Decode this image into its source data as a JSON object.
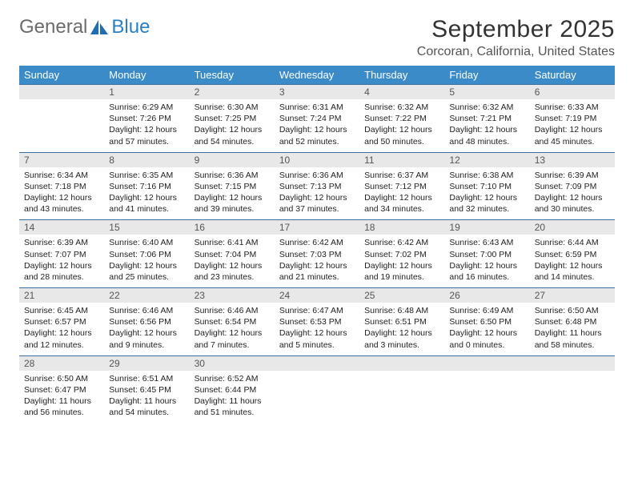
{
  "brand": {
    "word1": "General",
    "word2": "Blue"
  },
  "title": "September 2025",
  "location": "Corcoran, California, United States",
  "colors": {
    "header_bg": "#3b8bc9",
    "header_text": "#ffffff",
    "daynum_bg": "#e8e8e8",
    "daynum_text": "#555555",
    "rule": "#3b6fa0",
    "brand_gray": "#6b6b6b",
    "brand_blue": "#2b7fc3",
    "body_text": "#222222"
  },
  "fonts": {
    "title_size": 30,
    "location_size": 16,
    "dayhead_size": 13,
    "daynum_size": 12,
    "cell_size": 10.5
  },
  "day_headers": [
    "Sunday",
    "Monday",
    "Tuesday",
    "Wednesday",
    "Thursday",
    "Friday",
    "Saturday"
  ],
  "weeks": [
    [
      null,
      {
        "n": "1",
        "sr": "Sunrise: 6:29 AM",
        "ss": "Sunset: 7:26 PM",
        "d1": "Daylight: 12 hours",
        "d2": "and 57 minutes."
      },
      {
        "n": "2",
        "sr": "Sunrise: 6:30 AM",
        "ss": "Sunset: 7:25 PM",
        "d1": "Daylight: 12 hours",
        "d2": "and 54 minutes."
      },
      {
        "n": "3",
        "sr": "Sunrise: 6:31 AM",
        "ss": "Sunset: 7:24 PM",
        "d1": "Daylight: 12 hours",
        "d2": "and 52 minutes."
      },
      {
        "n": "4",
        "sr": "Sunrise: 6:32 AM",
        "ss": "Sunset: 7:22 PM",
        "d1": "Daylight: 12 hours",
        "d2": "and 50 minutes."
      },
      {
        "n": "5",
        "sr": "Sunrise: 6:32 AM",
        "ss": "Sunset: 7:21 PM",
        "d1": "Daylight: 12 hours",
        "d2": "and 48 minutes."
      },
      {
        "n": "6",
        "sr": "Sunrise: 6:33 AM",
        "ss": "Sunset: 7:19 PM",
        "d1": "Daylight: 12 hours",
        "d2": "and 45 minutes."
      }
    ],
    [
      {
        "n": "7",
        "sr": "Sunrise: 6:34 AM",
        "ss": "Sunset: 7:18 PM",
        "d1": "Daylight: 12 hours",
        "d2": "and 43 minutes."
      },
      {
        "n": "8",
        "sr": "Sunrise: 6:35 AM",
        "ss": "Sunset: 7:16 PM",
        "d1": "Daylight: 12 hours",
        "d2": "and 41 minutes."
      },
      {
        "n": "9",
        "sr": "Sunrise: 6:36 AM",
        "ss": "Sunset: 7:15 PM",
        "d1": "Daylight: 12 hours",
        "d2": "and 39 minutes."
      },
      {
        "n": "10",
        "sr": "Sunrise: 6:36 AM",
        "ss": "Sunset: 7:13 PM",
        "d1": "Daylight: 12 hours",
        "d2": "and 37 minutes."
      },
      {
        "n": "11",
        "sr": "Sunrise: 6:37 AM",
        "ss": "Sunset: 7:12 PM",
        "d1": "Daylight: 12 hours",
        "d2": "and 34 minutes."
      },
      {
        "n": "12",
        "sr": "Sunrise: 6:38 AM",
        "ss": "Sunset: 7:10 PM",
        "d1": "Daylight: 12 hours",
        "d2": "and 32 minutes."
      },
      {
        "n": "13",
        "sr": "Sunrise: 6:39 AM",
        "ss": "Sunset: 7:09 PM",
        "d1": "Daylight: 12 hours",
        "d2": "and 30 minutes."
      }
    ],
    [
      {
        "n": "14",
        "sr": "Sunrise: 6:39 AM",
        "ss": "Sunset: 7:07 PM",
        "d1": "Daylight: 12 hours",
        "d2": "and 28 minutes."
      },
      {
        "n": "15",
        "sr": "Sunrise: 6:40 AM",
        "ss": "Sunset: 7:06 PM",
        "d1": "Daylight: 12 hours",
        "d2": "and 25 minutes."
      },
      {
        "n": "16",
        "sr": "Sunrise: 6:41 AM",
        "ss": "Sunset: 7:04 PM",
        "d1": "Daylight: 12 hours",
        "d2": "and 23 minutes."
      },
      {
        "n": "17",
        "sr": "Sunrise: 6:42 AM",
        "ss": "Sunset: 7:03 PM",
        "d1": "Daylight: 12 hours",
        "d2": "and 21 minutes."
      },
      {
        "n": "18",
        "sr": "Sunrise: 6:42 AM",
        "ss": "Sunset: 7:02 PM",
        "d1": "Daylight: 12 hours",
        "d2": "and 19 minutes."
      },
      {
        "n": "19",
        "sr": "Sunrise: 6:43 AM",
        "ss": "Sunset: 7:00 PM",
        "d1": "Daylight: 12 hours",
        "d2": "and 16 minutes."
      },
      {
        "n": "20",
        "sr": "Sunrise: 6:44 AM",
        "ss": "Sunset: 6:59 PM",
        "d1": "Daylight: 12 hours",
        "d2": "and 14 minutes."
      }
    ],
    [
      {
        "n": "21",
        "sr": "Sunrise: 6:45 AM",
        "ss": "Sunset: 6:57 PM",
        "d1": "Daylight: 12 hours",
        "d2": "and 12 minutes."
      },
      {
        "n": "22",
        "sr": "Sunrise: 6:46 AM",
        "ss": "Sunset: 6:56 PM",
        "d1": "Daylight: 12 hours",
        "d2": "and 9 minutes."
      },
      {
        "n": "23",
        "sr": "Sunrise: 6:46 AM",
        "ss": "Sunset: 6:54 PM",
        "d1": "Daylight: 12 hours",
        "d2": "and 7 minutes."
      },
      {
        "n": "24",
        "sr": "Sunrise: 6:47 AM",
        "ss": "Sunset: 6:53 PM",
        "d1": "Daylight: 12 hours",
        "d2": "and 5 minutes."
      },
      {
        "n": "25",
        "sr": "Sunrise: 6:48 AM",
        "ss": "Sunset: 6:51 PM",
        "d1": "Daylight: 12 hours",
        "d2": "and 3 minutes."
      },
      {
        "n": "26",
        "sr": "Sunrise: 6:49 AM",
        "ss": "Sunset: 6:50 PM",
        "d1": "Daylight: 12 hours",
        "d2": "and 0 minutes."
      },
      {
        "n": "27",
        "sr": "Sunrise: 6:50 AM",
        "ss": "Sunset: 6:48 PM",
        "d1": "Daylight: 11 hours",
        "d2": "and 58 minutes."
      }
    ],
    [
      {
        "n": "28",
        "sr": "Sunrise: 6:50 AM",
        "ss": "Sunset: 6:47 PM",
        "d1": "Daylight: 11 hours",
        "d2": "and 56 minutes."
      },
      {
        "n": "29",
        "sr": "Sunrise: 6:51 AM",
        "ss": "Sunset: 6:45 PM",
        "d1": "Daylight: 11 hours",
        "d2": "and 54 minutes."
      },
      {
        "n": "30",
        "sr": "Sunrise: 6:52 AM",
        "ss": "Sunset: 6:44 PM",
        "d1": "Daylight: 11 hours",
        "d2": "and 51 minutes."
      },
      null,
      null,
      null,
      null
    ]
  ]
}
